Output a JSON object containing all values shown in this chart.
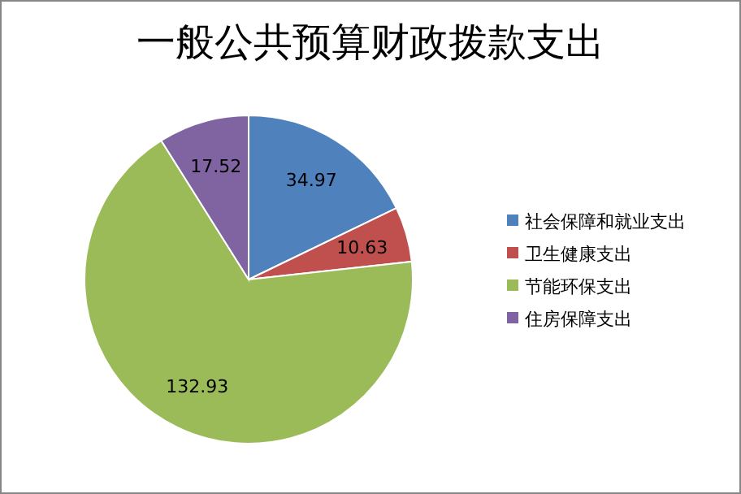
{
  "chart_data": {
    "type": "pie",
    "title": "一般公共预算财政拨款支出",
    "categories": [
      "社会保障和就业支出",
      "卫生健康支出",
      "节能环保支出",
      "住房保障支出"
    ],
    "values": [
      34.97,
      10.63,
      132.93,
      17.52
    ],
    "colors": [
      "#4f81bd",
      "#c0504d",
      "#9bbb59",
      "#8064a2"
    ],
    "data_labels": true,
    "legend": "right"
  }
}
